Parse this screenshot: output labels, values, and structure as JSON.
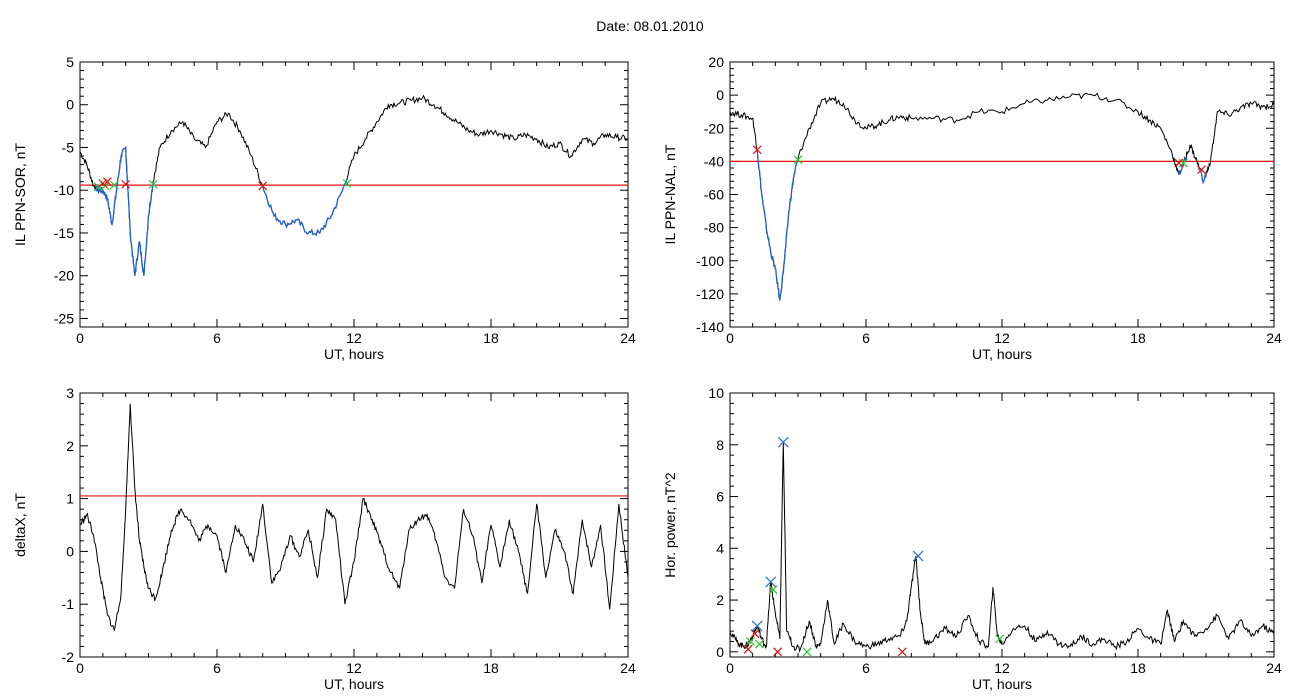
{
  "figure": {
    "title": "Date:  08.01.2010"
  },
  "colors": {
    "trace": "#000000",
    "segment": "#1f5fd6",
    "threshold": "#e01010",
    "marker_start": "#2ec22e",
    "marker_end": "#e01010",
    "marker_peak": "#2a6fc8"
  },
  "chart_data": [
    {
      "id": "il-ppn-sor",
      "type": "line",
      "title": "",
      "xlabel": "UT, hours",
      "ylabel": "IL PPN-SOR, nT",
      "xlim": [
        0,
        24
      ],
      "ylim": [
        -26,
        5
      ],
      "xticks": [
        0,
        6,
        12,
        18,
        24
      ],
      "yticks": [
        -25,
        -20,
        -15,
        -10,
        -5,
        0,
        5
      ],
      "threshold": -9.4,
      "series": [
        {
          "x": [
            0,
            0.3,
            0.6,
            0.8,
            1.0,
            1.2,
            1.4,
            1.6,
            1.8,
            2.0,
            2.2,
            2.4,
            2.6,
            2.8,
            3.0,
            3.2,
            3.5,
            4.0,
            4.5,
            5.0,
            5.5,
            6.0,
            6.5,
            7.0,
            7.5,
            8.0,
            8.5,
            9.0,
            9.5,
            10.0,
            10.5,
            11.0,
            11.5,
            12.0,
            12.5,
            13.0,
            13.5,
            14.0,
            14.5,
            15.0,
            15.5,
            16.0,
            16.5,
            17.0,
            17.5,
            18.0,
            18.5,
            19.0,
            19.5,
            20.0,
            20.5,
            21.0,
            21.5,
            22.0,
            22.5,
            23.0,
            23.5,
            24.0
          ],
          "y": [
            -5.5,
            -7,
            -9.5,
            -10,
            -10,
            -11,
            -14,
            -10,
            -6,
            -5,
            -15,
            -20,
            -16,
            -20,
            -13,
            -9,
            -5,
            -3,
            -2,
            -4,
            -5,
            -2,
            -1,
            -3,
            -6,
            -9.5,
            -13,
            -14,
            -13.5,
            -15,
            -15,
            -13,
            -10,
            -6,
            -4,
            -2,
            0,
            0.2,
            0.5,
            0.8,
            0,
            -1,
            -2,
            -3,
            -3.5,
            -3,
            -3.5,
            -4,
            -3.5,
            -4,
            -5,
            -4.5,
            -6,
            -4,
            -4.5,
            -3.5,
            -3.8,
            -4
          ]
        }
      ],
      "segments": [
        [
          0.7,
          2.2
        ],
        [
          2.2,
          3.2
        ],
        [
          8.0,
          11.7
        ]
      ],
      "markers_start": [
        [
          0.8,
          -9.6
        ],
        [
          1.1,
          -9.5
        ],
        [
          1.5,
          -9.4
        ],
        [
          3.2,
          -9.3
        ],
        [
          11.7,
          -9.2
        ]
      ],
      "markers_end": [
        [
          1.0,
          -9.2
        ],
        [
          1.2,
          -9.0
        ],
        [
          2.0,
          -9.3
        ],
        [
          8.0,
          -9.5
        ]
      ]
    },
    {
      "id": "il-ppn-nal",
      "type": "line",
      "title": "",
      "xlabel": "UT, hours",
      "ylabel": "IL PPN-NAL, nT",
      "xlim": [
        0,
        24
      ],
      "ylim": [
        -140,
        20
      ],
      "xticks": [
        0,
        6,
        12,
        18,
        24
      ],
      "yticks": [
        -140,
        -120,
        -100,
        -80,
        -60,
        -40,
        -20,
        0,
        20
      ],
      "threshold": -40,
      "series": [
        {
          "x": [
            0,
            0.5,
            1.0,
            1.2,
            1.4,
            1.6,
            1.8,
            2.0,
            2.2,
            2.4,
            2.6,
            2.8,
            3.0,
            3.5,
            4.0,
            4.5,
            5.0,
            5.5,
            6.0,
            6.5,
            7.0,
            7.5,
            8.0,
            9.0,
            10.0,
            11.0,
            12.0,
            13.0,
            14.0,
            15.0,
            16.0,
            17.0,
            18.0,
            18.5,
            19.0,
            19.5,
            19.8,
            20.0,
            20.3,
            20.6,
            20.9,
            21.2,
            21.5,
            22.0,
            22.5,
            23.0,
            23.5,
            24.0
          ],
          "y": [
            -10,
            -12,
            -14,
            -33,
            -60,
            -80,
            -95,
            -105,
            -124,
            -100,
            -70,
            -50,
            -38,
            -20,
            -5,
            -2,
            -5,
            -15,
            -20,
            -18,
            -15,
            -13,
            -14,
            -14,
            -15,
            -10,
            -10,
            -5,
            -3,
            -1,
            0,
            -3,
            -10,
            -15,
            -20,
            -35,
            -48,
            -42,
            -30,
            -40,
            -52,
            -40,
            -10,
            -12,
            -8,
            -5,
            -7,
            -6
          ]
        }
      ],
      "segments": [
        [
          1.2,
          3.0
        ],
        [
          19.8,
          20.1
        ],
        [
          20.7,
          21.0
        ]
      ],
      "markers_start": [
        [
          3.0,
          -39
        ],
        [
          20.0,
          -41
        ]
      ],
      "markers_end": [
        [
          1.2,
          -33
        ],
        [
          19.8,
          -41
        ],
        [
          20.8,
          -45
        ]
      ]
    },
    {
      "id": "deltax",
      "type": "line",
      "title": "",
      "xlabel": "UT, hours",
      "ylabel": "deltaX, nT",
      "xlim": [
        0,
        24
      ],
      "ylim": [
        -2,
        3
      ],
      "xticks": [
        0,
        6,
        12,
        18,
        24
      ],
      "yticks": [
        -2,
        -1,
        0,
        1,
        2,
        3
      ],
      "threshold": 1.05,
      "series": [
        {
          "x": [
            0,
            0.3,
            0.6,
            0.9,
            1.2,
            1.5,
            1.8,
            2.0,
            2.2,
            2.4,
            2.6,
            2.8,
            3.0,
            3.3,
            3.6,
            4.0,
            4.4,
            4.8,
            5.2,
            5.6,
            6.0,
            6.4,
            6.8,
            7.2,
            7.6,
            8.0,
            8.4,
            8.8,
            9.2,
            9.6,
            10.0,
            10.4,
            10.8,
            11.2,
            11.6,
            12.0,
            12.4,
            12.8,
            13.2,
            13.6,
            14.0,
            14.4,
            14.8,
            15.2,
            15.6,
            16.0,
            16.4,
            16.8,
            17.2,
            17.6,
            18.0,
            18.4,
            18.8,
            19.2,
            19.6,
            20.0,
            20.4,
            20.8,
            21.2,
            21.6,
            22.0,
            22.4,
            22.8,
            23.2,
            23.6,
            24.0
          ],
          "y": [
            0.5,
            0.7,
            0.3,
            -0.5,
            -1.2,
            -1.5,
            -0.8,
            0.8,
            2.8,
            1.2,
            0.2,
            -0.3,
            -0.7,
            -0.9,
            -0.4,
            0.4,
            0.8,
            0.6,
            0.2,
            0.5,
            0.3,
            -0.4,
            0.5,
            0.2,
            -0.2,
            0.9,
            -0.6,
            -0.3,
            0.3,
            -0.1,
            0.4,
            -0.5,
            0.8,
            0.6,
            -1.0,
            -0.2,
            1.0,
            0.6,
            0.1,
            -0.4,
            -0.7,
            0.4,
            0.6,
            0.7,
            0.2,
            -0.5,
            -0.7,
            0.8,
            0.3,
            -0.6,
            0.5,
            -0.3,
            0.6,
            0.0,
            -0.8,
            0.9,
            -0.5,
            0.4,
            0.0,
            -0.8,
            0.6,
            -0.3,
            0.5,
            -1.1,
            0.9,
            -0.5
          ]
        }
      ],
      "segments": [],
      "markers_start": [],
      "markers_end": []
    },
    {
      "id": "hor-power",
      "type": "line",
      "title": "",
      "xlabel": "UT, hours",
      "ylabel": "Hor. power, nT^2",
      "xlim": [
        0,
        24
      ],
      "ylim": [
        -0.2,
        10
      ],
      "xticks": [
        0,
        6,
        12,
        18,
        24
      ],
      "yticks": [
        0,
        2,
        4,
        6,
        8,
        10
      ],
      "threshold": null,
      "series": [
        {
          "x": [
            0,
            0.3,
            0.6,
            0.8,
            1.0,
            1.2,
            1.4,
            1.6,
            1.8,
            2.0,
            2.2,
            2.35,
            2.5,
            2.8,
            3.1,
            3.5,
            3.8,
            4.0,
            4.3,
            4.6,
            5.0,
            5.5,
            6.0,
            6.5,
            7.0,
            7.5,
            7.8,
            8.0,
            8.2,
            8.4,
            8.6,
            9.0,
            9.5,
            10.0,
            10.5,
            11.0,
            11.4,
            11.6,
            11.8,
            12.0,
            12.5,
            13.0,
            13.5,
            14.0,
            14.5,
            15.0,
            15.5,
            16.0,
            16.5,
            17.0,
            17.5,
            18.0,
            18.5,
            19.0,
            19.3,
            19.6,
            20.0,
            20.5,
            21.0,
            21.5,
            22.0,
            22.5,
            23.0,
            23.5,
            24.0
          ],
          "y": [
            0.8,
            0.4,
            0.2,
            0.3,
            0.6,
            1.0,
            0.5,
            0.2,
            2.7,
            1.5,
            0.5,
            8.1,
            0.8,
            0.2,
            0.1,
            1.2,
            0.2,
            0.3,
            2.0,
            0.3,
            1.1,
            0.4,
            0.2,
            0.3,
            0.5,
            0.6,
            1.2,
            2.5,
            3.7,
            1.5,
            0.3,
            0.5,
            0.9,
            0.6,
            1.4,
            0.4,
            0.2,
            2.5,
            0.6,
            0.3,
            0.9,
            1.0,
            0.4,
            0.8,
            0.3,
            0.2,
            0.6,
            0.3,
            0.5,
            0.2,
            0.4,
            0.9,
            0.5,
            0.3,
            1.6,
            0.4,
            1.2,
            0.6,
            0.9,
            1.4,
            0.5,
            1.2,
            0.6,
            1.0,
            0.7
          ]
        }
      ],
      "segments": [],
      "markers_start": [
        [
          0.9,
          0.4
        ],
        [
          1.3,
          0.3
        ],
        [
          1.9,
          2.4
        ],
        [
          3.4,
          0.0
        ],
        [
          11.9,
          0.5
        ]
      ],
      "markers_end": [
        [
          0.8,
          0.1
        ],
        [
          1.1,
          0.7
        ],
        [
          2.1,
          0.0
        ],
        [
          7.6,
          0.0
        ]
      ],
      "markers_peak": [
        [
          1.2,
          1.0
        ],
        [
          1.8,
          2.7
        ],
        [
          2.35,
          8.1
        ],
        [
          8.3,
          3.7
        ]
      ]
    }
  ]
}
